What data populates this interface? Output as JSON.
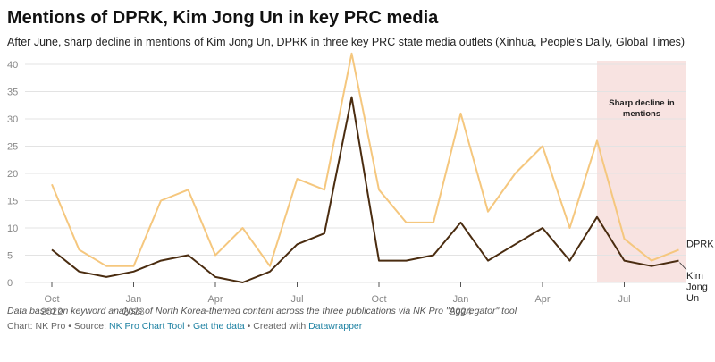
{
  "chart_data": {
    "type": "line",
    "title": "Mentions of DPRK, Kim Jong Un in key PRC media",
    "subtitle": "After June, sharp decline in mentions of Kim Jong Un, DPRK in three key PRC state media outlets (Xinhua, People's Daily, Global Times)",
    "x": [
      "2022-10",
      "2022-11",
      "2022-12",
      "2023-01",
      "2023-02",
      "2023-03",
      "2023-04",
      "2023-05",
      "2023-06",
      "2023-07",
      "2023-08",
      "2023-09",
      "2023-10",
      "2023-11",
      "2023-12",
      "2024-01",
      "2024-02",
      "2024-03",
      "2024-04",
      "2024-05",
      "2024-06",
      "2024-07",
      "2024-08",
      "2024-09"
    ],
    "xticks": [
      {
        "value": "2022-10",
        "label": "Oct",
        "year": "2022"
      },
      {
        "value": "2023-01",
        "label": "Jan",
        "year": "2023"
      },
      {
        "value": "2023-04",
        "label": "Apr"
      },
      {
        "value": "2023-07",
        "label": "Jul"
      },
      {
        "value": "2023-10",
        "label": "Oct"
      },
      {
        "value": "2024-01",
        "label": "Jan",
        "year": "2024"
      },
      {
        "value": "2024-04",
        "label": "Apr"
      },
      {
        "value": "2024-07",
        "label": "Jul"
      }
    ],
    "ylim": [
      0,
      42
    ],
    "yticks": [
      0,
      5,
      10,
      15,
      20,
      25,
      30,
      35,
      40
    ],
    "grid": true,
    "series": [
      {
        "name": "DPRK",
        "color": "#f5c77e",
        "values": [
          18,
          6,
          3,
          3,
          15,
          17,
          5,
          10,
          3,
          19,
          17,
          42,
          17,
          11,
          11,
          31,
          13,
          20,
          25,
          10,
          26,
          8,
          4,
          6
        ]
      },
      {
        "name": "Kim Jong Un",
        "color": "#4a2c10",
        "values": [
          6,
          2,
          1,
          2,
          4,
          5,
          1,
          0,
          2,
          7,
          9,
          34,
          4,
          4,
          5,
          11,
          4,
          7,
          10,
          4,
          12,
          4,
          3,
          4
        ]
      }
    ],
    "highlight": {
      "from": "2024-06",
      "to": "2024-09",
      "color": "#f8e3e1",
      "label": "Sharp decline in mentions"
    },
    "note": "Data based on keyword analysis of North Korea-themed content across the three publications via NK Pro \"Aggregator\" tool",
    "footer": {
      "chart_by": "Chart: NK Pro",
      "source_label": "Source:",
      "source": "NK Pro Chart Tool",
      "get_data": "Get the data",
      "created_with": "Created with",
      "tool": "Datawrapper"
    }
  }
}
